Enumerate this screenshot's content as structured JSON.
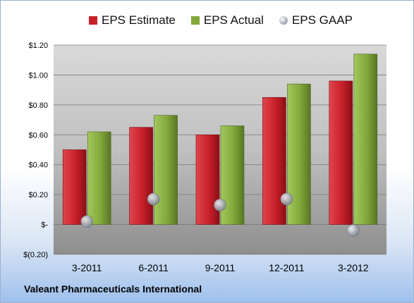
{
  "company_label": "Valeant Pharmaceuticals International",
  "chart_data": {
    "type": "bar",
    "categories": [
      "3-2011",
      "6-2011",
      "9-2011",
      "12-2011",
      "3-2012"
    ],
    "series": [
      {
        "name": "EPS Estimate",
        "type": "bar",
        "color": "#c8202a",
        "values": [
          0.5,
          0.65,
          0.6,
          0.85,
          0.96
        ]
      },
      {
        "name": "EPS Actual",
        "type": "bar",
        "color": "#82a83b",
        "values": [
          0.62,
          0.73,
          0.66,
          0.94,
          1.14
        ]
      },
      {
        "name": "EPS GAAP",
        "type": "scatter",
        "color": "#a8aeb8",
        "values": [
          0.02,
          0.17,
          0.13,
          0.17,
          -0.04
        ]
      }
    ],
    "ylim": [
      -0.2,
      1.2
    ],
    "yticks": [
      {
        "value": 1.2,
        "label": "$1.20"
      },
      {
        "value": 1.0,
        "label": "$1.00"
      },
      {
        "value": 0.8,
        "label": "$0.80"
      },
      {
        "value": 0.6,
        "label": "$0.60"
      },
      {
        "value": 0.4,
        "label": "$0.40"
      },
      {
        "value": 0.2,
        "label": "$0.20"
      },
      {
        "value": 0.0,
        "label": "$-"
      },
      {
        "value": -0.2,
        "label": "$(0.20)"
      }
    ],
    "grid": true,
    "legend_position": "top"
  }
}
